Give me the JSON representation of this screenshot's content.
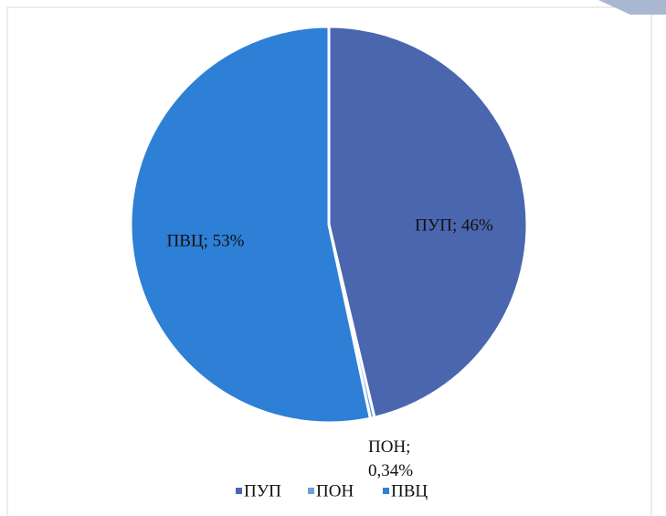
{
  "chart_data": {
    "type": "pie",
    "categories": [
      "ПУП",
      "ПОН",
      "ПВЦ"
    ],
    "values": [
      46,
      0.34,
      53
    ],
    "value_labels": [
      "ПУП; 46%",
      "ПОН; 0,34%",
      "ПВЦ; 53%"
    ],
    "colors": [
      "#4a66ae",
      "#6aa2dc",
      "#2e7fd6"
    ],
    "legend": "bottom"
  }
}
